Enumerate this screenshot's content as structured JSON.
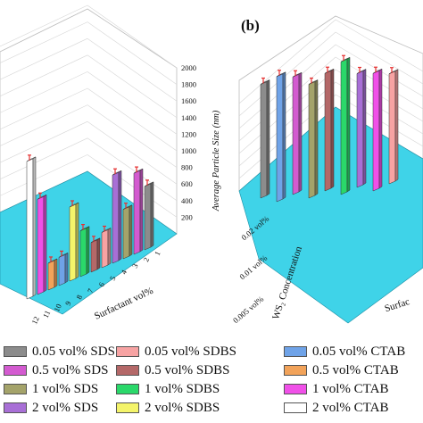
{
  "chart_data": [
    {
      "panel": "a",
      "type": "bar3d",
      "zlabel": "Average Particle Size (nm)",
      "xlabel": "Surfactant vol%",
      "zticks": [
        "200",
        "400",
        "600",
        "800",
        "1000",
        "1200",
        "1400",
        "1600",
        "1800",
        "2000"
      ],
      "xticks": [
        "1",
        "2",
        "3",
        "4",
        "5",
        "6",
        "7",
        "8",
        "9",
        "10",
        "11",
        "12"
      ],
      "zlim": [
        0,
        2000
      ],
      "floor_color": "#3fd3e8",
      "bars": [
        {
          "series": "0.05 vol% SDS",
          "x": 1,
          "row": 0,
          "z": 900
        },
        {
          "series": "0.5 vol% SDS",
          "x": 2,
          "row": 0,
          "z": 1150
        },
        {
          "series": "1 vol% SDS",
          "x": 3,
          "row": 0,
          "z": 700
        },
        {
          "series": "2 vol% SDS",
          "x": 4,
          "row": 0,
          "z": 1250
        },
        {
          "series": "0.05 vol% SDBS",
          "x": 5,
          "row": 0,
          "z": 500
        },
        {
          "series": "0.5 vol% SDBS",
          "x": 6,
          "row": 0,
          "z": 420
        },
        {
          "series": "1 vol% SDBS",
          "x": 7,
          "row": 0,
          "z": 650
        },
        {
          "series": "2 vol% SDBS",
          "x": 8,
          "row": 0,
          "z": 1050
        },
        {
          "series": "0.05 vol% CTAB",
          "x": 9,
          "row": 0,
          "z": 400
        },
        {
          "series": "0.5 vol% CTAB",
          "x": 10,
          "row": 0,
          "z": 380
        },
        {
          "series": "1 vol% CTAB",
          "x": 11,
          "row": 0,
          "z": 1350
        },
        {
          "series": "2 vol% CTAB",
          "x": 12,
          "row": 0,
          "z": 1950
        }
      ]
    },
    {
      "panel": "b",
      "type": "bar3d",
      "ylabel": "WS₂ Concentration",
      "xlabel": "Surfac",
      "yticks": [
        "0.005 vol%",
        "0.01 vol%",
        "0.02 vol%"
      ],
      "floor_color": "#3fd3e8",
      "bars": [
        {
          "series": "0.05 vol% SDS",
          "x": 1,
          "row": 2,
          "z": 1500
        },
        {
          "series": "0.05 vol% CTAB",
          "x": 2,
          "row": 2,
          "z": 1650
        },
        {
          "series": "0.5 vol% SDS",
          "x": 3,
          "row": 2,
          "z": 1550
        },
        {
          "series": "1 vol% SDS",
          "x": 4,
          "row": 2,
          "z": 1500
        },
        {
          "series": "0.5 vol% SDBS",
          "x": 5,
          "row": 2,
          "z": 1550
        },
        {
          "series": "1 vol% SDBS",
          "x": 6,
          "row": 2,
          "z": 1750
        },
        {
          "series": "2 vol% SDS",
          "x": 7,
          "row": 2,
          "z": 1500
        },
        {
          "series": "1 vol% CTAB",
          "x": 8,
          "row": 2,
          "z": 1550
        },
        {
          "series": "0.05 vol% SDBS",
          "x": 9,
          "row": 2,
          "z": 1450
        }
      ]
    }
  ],
  "legend": {
    "items": [
      {
        "label": "0.05 vol% SDS",
        "color": "#8c8c8c"
      },
      {
        "label": "0.05 vol% SDBS",
        "color": "#f7a3a3"
      },
      {
        "label": "0.05 vol% CTAB",
        "color": "#6fa3e8"
      },
      {
        "label": "0.5 vol% SDS",
        "color": "#d35bd0"
      },
      {
        "label": "0.5 vol% SDBS",
        "color": "#b46868"
      },
      {
        "label": "0.5 vol% CTAB",
        "color": "#f2a35a"
      },
      {
        "label": "1 vol% SDS",
        "color": "#a4a36a"
      },
      {
        "label": "1 vol% SDBS",
        "color": "#2ad86a"
      },
      {
        "label": "1 vol% CTAB",
        "color": "#f050e8"
      },
      {
        "label": "2 vol% SDS",
        "color": "#a86fd6"
      },
      {
        "label": "2 vol% SDBS",
        "color": "#f4f46a"
      },
      {
        "label": "2 vol% CTAB",
        "color": "#ffffff"
      }
    ]
  },
  "panel_b_label": "(b)"
}
